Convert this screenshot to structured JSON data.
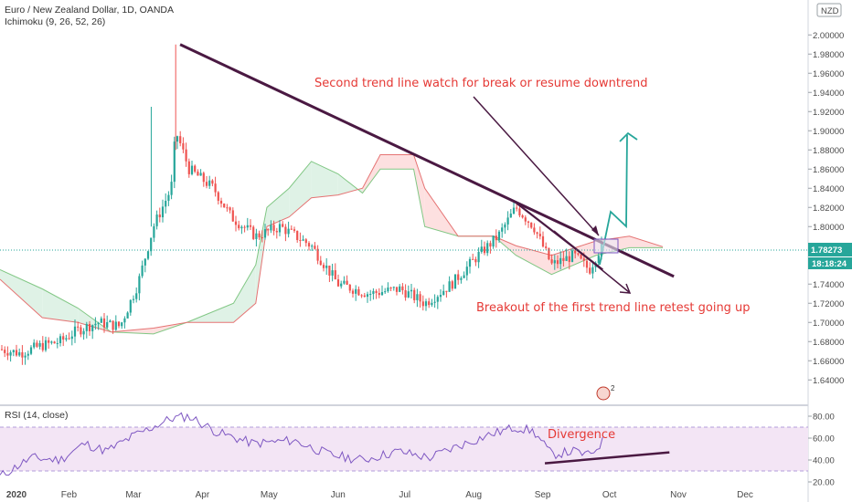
{
  "header": {
    "symbol_title": "Euro / New Zealand Dollar, 1D, OANDA",
    "indicator_label": "Ichimoku (9, 26, 52, 26)",
    "currency_badge": "NZD",
    "event_badge": "2"
  },
  "rsi_panel": {
    "label": "RSI (14, close)",
    "annotation": "Divergence",
    "ticks": [
      "80.00",
      "60.00",
      "40.00",
      "20.00"
    ],
    "overbought": 70,
    "oversold": 30
  },
  "annotations": {
    "second_trend": "Second trend line watch for break or resume downtrend",
    "breakout": "Breakout of the first trend line retest going up"
  },
  "price_tags": {
    "last_price": "1.78273",
    "countdown": "18:18:24"
  },
  "colors": {
    "bull": "#26a69a",
    "bear": "#ef5350",
    "trendline": "#4a1942",
    "annotation": "#e53935",
    "rsi_line": "#7e57c2",
    "rsi_band": "#f3e5f5",
    "cloud_bull": "#dff2e6",
    "cloud_bear": "#fde0e0",
    "arrow_up": "#26a69a"
  },
  "chart_data": {
    "type": "candlestick",
    "y_ticks": [
      "2.00000",
      "1.98000",
      "1.96000",
      "1.94000",
      "1.92000",
      "1.90000",
      "1.88000",
      "1.86000",
      "1.84000",
      "1.82000",
      "1.80000",
      "1.78000",
      "1.76000",
      "1.74000",
      "1.72000",
      "1.70000",
      "1.68000",
      "1.66000",
      "1.64000"
    ],
    "ylim": [
      1.625,
      2.025
    ],
    "x_ticks": [
      "2020",
      "Feb",
      "Mar",
      "Apr",
      "May",
      "Jun",
      "Jul",
      "Aug",
      "Sep",
      "Oct",
      "Nov",
      "Dec"
    ],
    "price_path": [
      [
        "2020-01-01",
        1.672
      ],
      [
        "2020-01-10",
        1.668
      ],
      [
        "2020-01-20",
        1.676
      ],
      [
        "2020-01-28",
        1.68
      ],
      [
        "2020-02-05",
        1.692
      ],
      [
        "2020-02-14",
        1.7
      ],
      [
        "2020-02-24",
        1.696
      ],
      [
        "2020-03-03",
        1.74
      ],
      [
        "2020-03-10",
        1.8
      ],
      [
        "2020-03-18",
        1.84
      ],
      [
        "2020-03-20",
        1.9
      ],
      [
        "2020-03-26",
        1.86
      ],
      [
        "2020-04-06",
        1.84
      ],
      [
        "2020-04-14",
        1.81
      ],
      [
        "2020-04-25",
        1.79
      ],
      [
        "2020-05-06",
        1.8
      ],
      [
        "2020-05-20",
        1.78
      ],
      [
        "2020-06-01",
        1.74
      ],
      [
        "2020-06-15",
        1.73
      ],
      [
        "2020-06-29",
        1.735
      ],
      [
        "2020-07-10",
        1.72
      ],
      [
        "2020-07-22",
        1.74
      ],
      [
        "2020-08-03",
        1.77
      ],
      [
        "2020-08-12",
        1.79
      ],
      [
        "2020-08-20",
        1.82
      ],
      [
        "2020-08-28",
        1.8
      ],
      [
        "2020-09-05",
        1.76
      ],
      [
        "2020-09-15",
        1.77
      ],
      [
        "2020-09-22",
        1.755
      ],
      [
        "2020-09-28",
        1.78273
      ]
    ],
    "rsi_path": [
      [
        "2020-01-01",
        25
      ],
      [
        "2020-01-15",
        42
      ],
      [
        "2020-01-28",
        40
      ],
      [
        "2020-02-08",
        55
      ],
      [
        "2020-02-18",
        48
      ],
      [
        "2020-03-01",
        62
      ],
      [
        "2020-03-18",
        78
      ],
      [
        "2020-03-26",
        80
      ],
      [
        "2020-04-08",
        65
      ],
      [
        "2020-04-24",
        55
      ],
      [
        "2020-05-12",
        58
      ],
      [
        "2020-05-28",
        45
      ],
      [
        "2020-06-12",
        40
      ],
      [
        "2020-06-28",
        48
      ],
      [
        "2020-07-12",
        42
      ],
      [
        "2020-07-24",
        52
      ],
      [
        "2020-08-08",
        63
      ],
      [
        "2020-08-20",
        70
      ],
      [
        "2020-08-28",
        66
      ],
      [
        "2020-09-05",
        45
      ],
      [
        "2020-09-15",
        48
      ],
      [
        "2020-09-22",
        44
      ],
      [
        "2020-09-28",
        57
      ]
    ],
    "ichimoku_cloud": [
      [
        "2020-01-01",
        1.755,
        1.745
      ],
      [
        "2020-01-20",
        1.735,
        1.705
      ],
      [
        "2020-02-05",
        1.715,
        1.7
      ],
      [
        "2020-02-20",
        1.69,
        1.69
      ],
      [
        "2020-03-10",
        1.688,
        1.694
      ],
      [
        "2020-03-25",
        1.7,
        1.7
      ],
      [
        "2020-04-15",
        1.72,
        1.7
      ],
      [
        "2020-04-25",
        1.76,
        1.72
      ],
      [
        "2020-04-30",
        1.82,
        1.8
      ],
      [
        "2020-05-10",
        1.84,
        1.81
      ],
      [
        "2020-05-20",
        1.868,
        1.83
      ],
      [
        "2020-06-01",
        1.855,
        1.833
      ],
      [
        "2020-06-12",
        1.835,
        1.84
      ],
      [
        "2020-06-20",
        1.86,
        1.875
      ],
      [
        "2020-07-05",
        1.86,
        1.875
      ],
      [
        "2020-07-10",
        1.8,
        1.84
      ],
      [
        "2020-07-25",
        1.79,
        1.79
      ],
      [
        "2020-08-10",
        1.79,
        1.79
      ],
      [
        "2020-08-20",
        1.77,
        1.78
      ],
      [
        "2020-09-05",
        1.75,
        1.77
      ],
      [
        "2020-09-25",
        1.77,
        1.785
      ],
      [
        "2020-10-10",
        1.778,
        1.79
      ],
      [
        "2020-10-25",
        1.778,
        1.779
      ]
    ],
    "trendlines": [
      {
        "from": [
          "2020-03-22",
          1.99
        ],
        "to": [
          "2020-10-30",
          1.748
        ]
      },
      {
        "from": [
          "2020-08-20",
          1.825
        ],
        "to": [
          "2020-09-28",
          1.755
        ]
      }
    ],
    "rsi_divergence_line": {
      "from": [
        "2020-09-02",
        37
      ],
      "to": [
        "2020-10-28",
        47
      ]
    }
  }
}
